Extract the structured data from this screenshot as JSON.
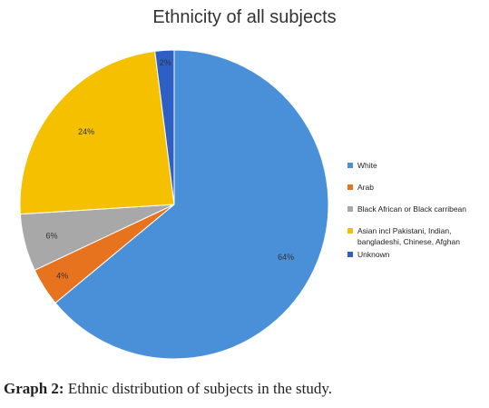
{
  "chart_data": {
    "type": "pie",
    "title": "Ethnicity of all subjects",
    "slices": [
      {
        "name": "White",
        "value": 64,
        "label": "64%",
        "color": "#4a90d9"
      },
      {
        "name": "Arab",
        "value": 4,
        "label": "4%",
        "color": "#e8731f"
      },
      {
        "name": "Black African or Black carribean",
        "value": 6,
        "label": "6%",
        "color": "#a8a8a8"
      },
      {
        "name": "Asian incl Pakistani, Indian, bangladeshi, Chinese, Afghan",
        "value": 24,
        "label": "24%",
        "color": "#f5c000"
      },
      {
        "name": "Unknown",
        "value": 2,
        "label": "2%",
        "color": "#2e5fc4"
      }
    ],
    "legend": {
      "placement": "right",
      "items": [
        {
          "lines": [
            "White"
          ]
        },
        {
          "lines": [
            "Arab"
          ]
        },
        {
          "lines": [
            "Black African or Black carribean"
          ]
        },
        {
          "lines": [
            "Asian incl Pakistani, Indian,",
            "bangladeshi, Chinese, Afghan"
          ]
        },
        {
          "lines": [
            "Unknown"
          ]
        }
      ]
    }
  },
  "caption": {
    "label": "Graph 2:",
    "text": " Ethnic distribution of subjects in the study."
  }
}
